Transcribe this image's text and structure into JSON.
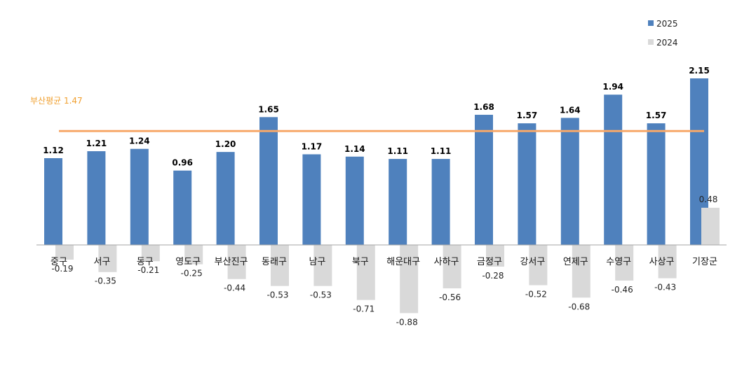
{
  "chart_data": {
    "type": "bar",
    "categories": [
      "중구",
      "서구",
      "동구",
      "영도구",
      "부산진구",
      "동래구",
      "남구",
      "북구",
      "해운대구",
      "사하구",
      "금정구",
      "강서구",
      "연제구",
      "수영구",
      "사상구",
      "기장군"
    ],
    "series": [
      {
        "name": "2025",
        "color": "#4f81bd",
        "values": [
          1.12,
          1.21,
          1.24,
          0.96,
          1.2,
          1.65,
          1.17,
          1.14,
          1.11,
          1.11,
          1.68,
          1.57,
          1.64,
          1.94,
          1.57,
          2.15
        ]
      },
      {
        "name": "2024",
        "color": "#d9d9d9",
        "values": [
          -0.19,
          -0.35,
          -0.21,
          -0.25,
          -0.44,
          -0.53,
          -0.53,
          -0.71,
          -0.88,
          -0.56,
          -0.28,
          -0.52,
          -0.68,
          -0.46,
          -0.43,
          0.48
        ]
      }
    ],
    "labels_2025": [
      "1.12",
      "1.21",
      "1.24",
      "0.96",
      "1.20",
      "1.65",
      "1.17",
      "1.14",
      "1.11",
      "1.11",
      "1.68",
      "1.57",
      "1.64",
      "1.94",
      "1.57",
      "2.15"
    ],
    "labels_2024": [
      "-0.19",
      "-0.35",
      "-0.21",
      "-0.25",
      "-0.44",
      "-0.53",
      "-0.53",
      "-0.71",
      "-0.88",
      "-0.56",
      "-0.28",
      "-0.52",
      "-0.68",
      "-0.46",
      "-0.43",
      "0.48"
    ],
    "average": {
      "label": "부산평균 1.47",
      "value": 1.47,
      "color": "#f7a86a"
    },
    "legend_position": "top-right",
    "grid": false
  }
}
